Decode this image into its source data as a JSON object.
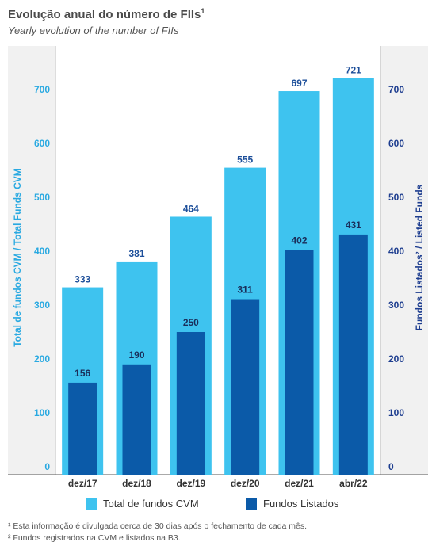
{
  "header": {
    "title": "Evolução anual do número de FIIs",
    "title_sup": "1",
    "subtitle": "Yearly evolution of the number of FIIs"
  },
  "chart_data": {
    "type": "bar",
    "categories": [
      "dez/17",
      "dez/18",
      "dez/19",
      "dez/20",
      "dez/21",
      "abr/22"
    ],
    "series": [
      {
        "name": "Total de fundos CVM",
        "values": [
          333,
          381,
          464,
          555,
          697,
          721
        ],
        "color": "#3ec3ef",
        "axis": "left"
      },
      {
        "name": "Fundos Listados",
        "values": [
          156,
          190,
          250,
          311,
          402,
          431
        ],
        "color": "#0b5aa8",
        "axis": "right"
      }
    ],
    "ylabel_left": "Total de fundos CVM / Total Funds CVM",
    "ylabel_right": "Fundos Listados² / Listed Funds",
    "yticks": [
      0,
      100,
      200,
      300,
      400,
      500,
      600,
      700
    ],
    "ylim": [
      0,
      700
    ],
    "left_axis_color": "#29a9e1",
    "right_axis_color": "#1d3d8f",
    "grid": false,
    "legend_position": "bottom"
  },
  "footnotes": [
    "¹ Esta informação é divulgada cerca de 30 dias após o fechamento de cada mês.",
    "² Fundos registrados na CVM e listados na B3."
  ]
}
